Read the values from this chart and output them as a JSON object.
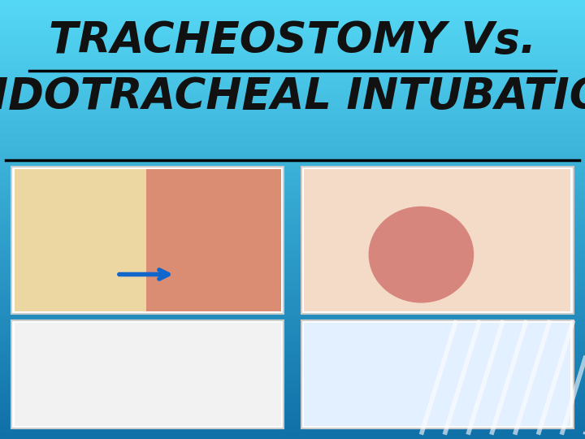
{
  "title_line1": "TRACHEOSTOMY Vs.",
  "title_line2": "ENDOTRACHEAL INTUBATION",
  "bg_color_top": "#55d8f5",
  "bg_color_bottom": "#1070a8",
  "title_color": "#111111",
  "title_fontsize": 38,
  "fig_width": 7.2,
  "fig_height": 5.4,
  "dpi": 100,
  "image_colors": [
    "#f5e6c8",
    "#f0d0c0",
    "#f0f0f0",
    "#ddeeff"
  ],
  "diagonal_lines_color": "#ffffff",
  "diagonal_lines_alpha": 0.6
}
